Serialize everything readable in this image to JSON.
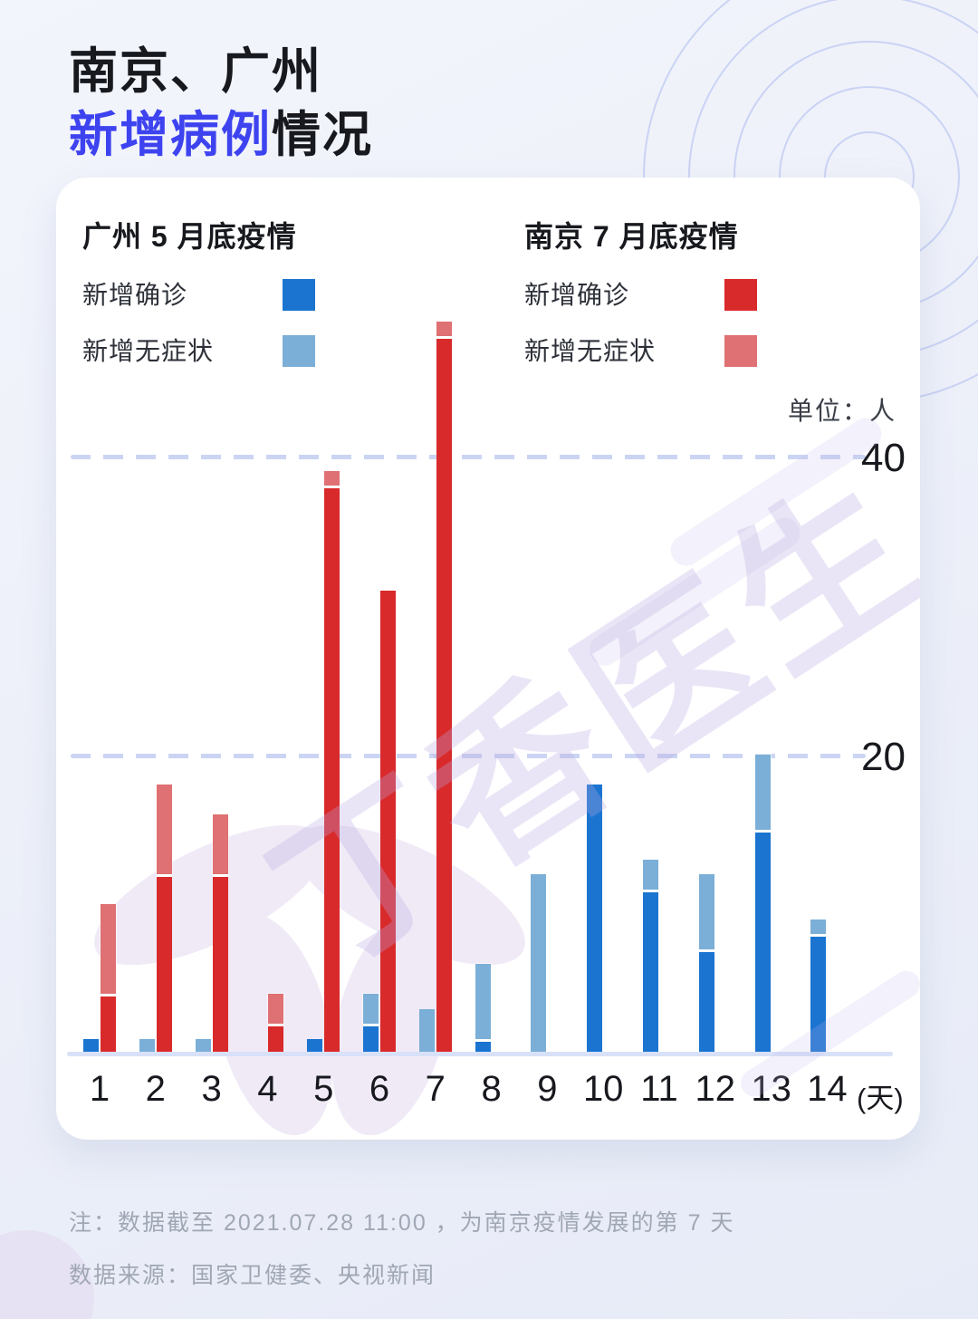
{
  "page": {
    "title_line1": "南京、广州",
    "title_accent": "新增病例",
    "title_rest": "情况",
    "watermark": "丁香医生",
    "notes": [
      "注：数据截至 2021.07.28 11:00 ，为南京疫情发展的第 7 天",
      "数据来源：国家卫健委、央视新闻"
    ]
  },
  "legends": {
    "guangzhou": {
      "title": "广州 5 月底疫情",
      "items": [
        {
          "label": "新增确诊",
          "color": "#1B74D0"
        },
        {
          "label": "新增无症状",
          "color": "#7BAFD7"
        }
      ]
    },
    "nanjing": {
      "title": "南京 7 月底疫情",
      "items": [
        {
          "label": "新增确诊",
          "color": "#D92A2B"
        },
        {
          "label": "新增无症状",
          "color": "#DF7073"
        }
      ]
    }
  },
  "chart_data": {
    "type": "bar",
    "title": "南京、广州新增病例情况",
    "unit_label": "单位：人",
    "x_unit_suffix": "(天)",
    "xlabel": "天 (day)",
    "ylabel": "人 (cases)",
    "categories": [
      1,
      2,
      3,
      4,
      5,
      6,
      7,
      8,
      9,
      10,
      11,
      12,
      13,
      14
    ],
    "series": [
      {
        "name": "广州 新增确诊",
        "group": "广州",
        "stack": "guangzhou",
        "color": "#1B74D0",
        "values": [
          1,
          0,
          0,
          0,
          1,
          2,
          0,
          1,
          0,
          18,
          11,
          7,
          15,
          8
        ]
      },
      {
        "name": "广州 新增无症状",
        "group": "广州",
        "stack": "guangzhou",
        "color": "#7BAFD7",
        "values": [
          0,
          1,
          1,
          0,
          0,
          2,
          3,
          5,
          12,
          0,
          2,
          5,
          5,
          1
        ]
      },
      {
        "name": "南京 新增确诊",
        "group": "南京",
        "stack": "nanjing",
        "color": "#D92A2B",
        "values": [
          4,
          12,
          12,
          2,
          38,
          31,
          48,
          0,
          0,
          0,
          0,
          0,
          0,
          0
        ]
      },
      {
        "name": "南京 新增无症状",
        "group": "南京",
        "stack": "nanjing",
        "color": "#DF7073",
        "values": [
          6,
          6,
          4,
          2,
          1,
          0,
          1,
          0,
          0,
          0,
          0,
          0,
          0,
          0
        ]
      }
    ],
    "gridlines": [
      20,
      40
    ],
    "ytick_labels": [
      "40",
      "20"
    ],
    "ylim": [
      0,
      49
    ],
    "grid": "dashed-horizontal",
    "legend_position": "top"
  }
}
